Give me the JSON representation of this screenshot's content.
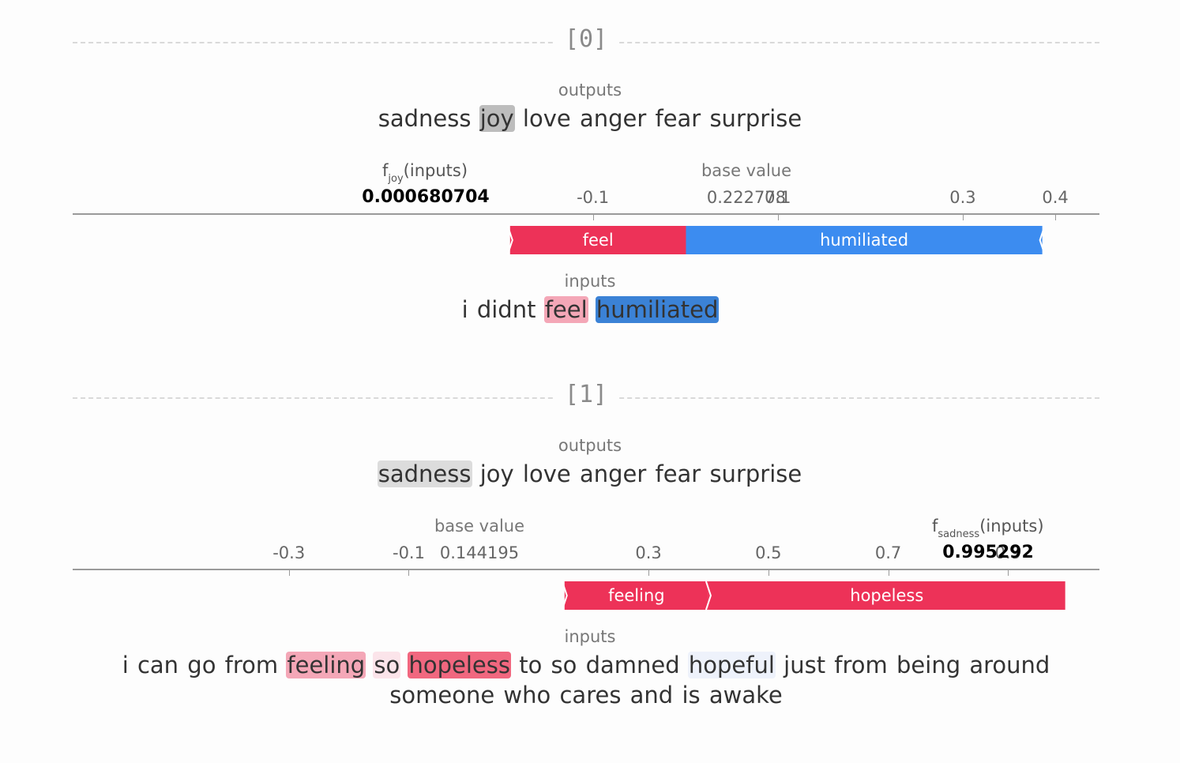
{
  "colors": {
    "positive": "#ed3258",
    "negative": "#3c8cf0",
    "axis": "#9a9a9a"
  },
  "outputs_label": "outputs",
  "inputs_label": "inputs",
  "base_value_label": "base value",
  "chart_data": [
    {
      "type": "force",
      "index_label": "[0]",
      "outputs": [
        "sadness",
        "joy",
        "love",
        "anger",
        "fear",
        "surprise"
      ],
      "selected_output": "joy",
      "fx_name": "joy",
      "fx_value": 0.000680704,
      "fx_text": "0.000680704",
      "base_value": 0.222778,
      "base_text": "0.222778",
      "ticks": [
        -0.1,
        0.1,
        0.3,
        0.4
      ],
      "tick_labels": [
        "-0.1",
        "0.1",
        "0.3",
        "0.4"
      ],
      "xlim": [
        -0.6625,
        0.4478
      ],
      "contributions": [
        {
          "token": "feel",
          "from": -0.1895,
          "to": 0.000680704,
          "sign": "positive"
        },
        {
          "token": "humiliated",
          "from": 0.000680704,
          "to": 0.386,
          "sign": "negative"
        }
      ],
      "inputs": [
        {
          "text": "i",
          "shade": "none"
        },
        {
          "text": "didnt",
          "shade": "none"
        },
        {
          "text": "feel",
          "shade": "pos-light"
        },
        {
          "text": "humiliated",
          "shade": "neg-strong"
        }
      ]
    },
    {
      "type": "force",
      "index_label": "[1]",
      "outputs": [
        "sadness",
        "joy",
        "love",
        "anger",
        "fear",
        "surprise"
      ],
      "selected_output": "sadness",
      "fx_name": "sadness",
      "fx_value": 0.995292,
      "fx_text": "0.995292",
      "base_value": 0.144195,
      "base_text": "0.144195",
      "ticks": [
        -0.3,
        -0.1,
        0.3,
        0.5,
        0.7,
        0.9
      ],
      "tick_labels": [
        "-0.3",
        "-0.1",
        "0.3",
        "0.5",
        "0.7",
        "0.9"
      ],
      "xlim": [
        -0.6607,
        1.0524
      ],
      "contributions": [
        {
          "token": "feeling",
          "from": 0.16,
          "to": 0.4,
          "sign": "positive"
        },
        {
          "token": "hopeless",
          "from": 0.4,
          "to": 0.995292,
          "sign": "positive"
        }
      ],
      "inputs": [
        {
          "text": "i",
          "shade": "none"
        },
        {
          "text": "can",
          "shade": "none"
        },
        {
          "text": "go",
          "shade": "none"
        },
        {
          "text": "from",
          "shade": "none"
        },
        {
          "text": "feeling",
          "shade": "pos-light"
        },
        {
          "text": "so",
          "shade": "pos-faint"
        },
        {
          "text": "hopeless",
          "shade": "pos-strong"
        },
        {
          "text": "to",
          "shade": "none"
        },
        {
          "text": "so",
          "shade": "none"
        },
        {
          "text": "damned",
          "shade": "none"
        },
        {
          "text": "hopeful",
          "shade": "neg-faint"
        },
        {
          "text": "just",
          "shade": "none"
        },
        {
          "text": "from",
          "shade": "none"
        },
        {
          "text": "being",
          "shade": "none"
        },
        {
          "text": "around",
          "shade": "none"
        },
        {
          "text": "someone",
          "shade": "none"
        },
        {
          "text": "who",
          "shade": "none"
        },
        {
          "text": "cares",
          "shade": "none"
        },
        {
          "text": "and",
          "shade": "none"
        },
        {
          "text": "is",
          "shade": "none"
        },
        {
          "text": "awake",
          "shade": "none"
        }
      ]
    }
  ]
}
